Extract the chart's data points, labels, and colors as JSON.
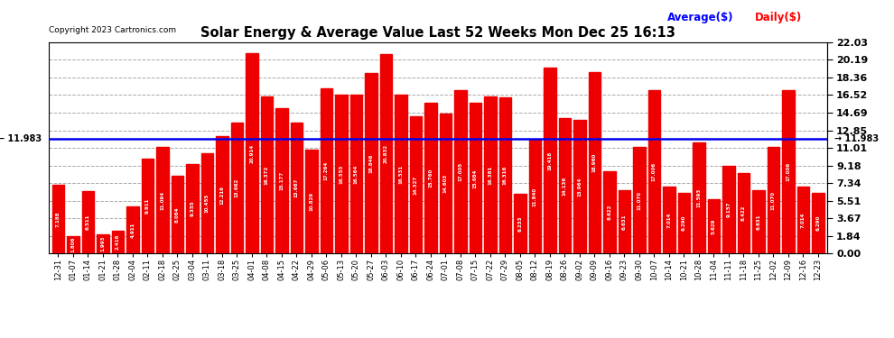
{
  "title": "Solar Energy & Average Value Last 52 Weeks Mon Dec 25 16:13",
  "copyright": "Copyright 2023 Cartronics.com",
  "average_label": "Average($)",
  "daily_label": "Daily($)",
  "average_value": 11.983,
  "ymax": 22.03,
  "yticks": [
    0.0,
    1.84,
    3.67,
    5.51,
    7.34,
    9.18,
    11.01,
    12.85,
    14.69,
    16.52,
    18.36,
    20.19,
    22.03
  ],
  "bar_color": "#ee0000",
  "avg_line_color": "#0000ee",
  "background_color": "#ffffff",
  "grid_color": "#aaaaaa",
  "categories": [
    "12-31",
    "01-07",
    "01-14",
    "01-21",
    "01-28",
    "02-04",
    "02-11",
    "02-18",
    "02-25",
    "03-04",
    "03-11",
    "03-18",
    "03-25",
    "04-01",
    "04-08",
    "04-15",
    "04-22",
    "04-29",
    "05-06",
    "05-13",
    "05-20",
    "05-27",
    "06-03",
    "06-10",
    "06-17",
    "06-24",
    "07-01",
    "07-08",
    "07-15",
    "07-22",
    "07-29",
    "08-05",
    "08-12",
    "08-19",
    "08-26",
    "09-02",
    "09-09",
    "09-16",
    "09-23",
    "09-30",
    "10-07",
    "10-14",
    "10-21",
    "10-28",
    "11-04",
    "11-11",
    "11-18",
    "11-25",
    "12-02",
    "12-09",
    "12-16",
    "12-23"
  ],
  "values": [
    7.188,
    1.806,
    6.511,
    1.993,
    2.416,
    4.911,
    9.911,
    11.094,
    8.064,
    9.355,
    10.455,
    12.216,
    13.662,
    20.914,
    16.372,
    15.177,
    13.667,
    10.829,
    17.264,
    16.553,
    16.564,
    18.846,
    20.832,
    16.531,
    14.327,
    15.76,
    14.603,
    17.005,
    15.684,
    16.381,
    16.316,
    6.233,
    11.84,
    19.418,
    14.136,
    13.964,
    18.96,
    8.622,
    6.631,
    11.07,
    17.006,
    7.014,
    6.29,
    11.593,
    5.629,
    9.157,
    8.422,
    6.631,
    11.07,
    17.006,
    7.014,
    6.29
  ]
}
